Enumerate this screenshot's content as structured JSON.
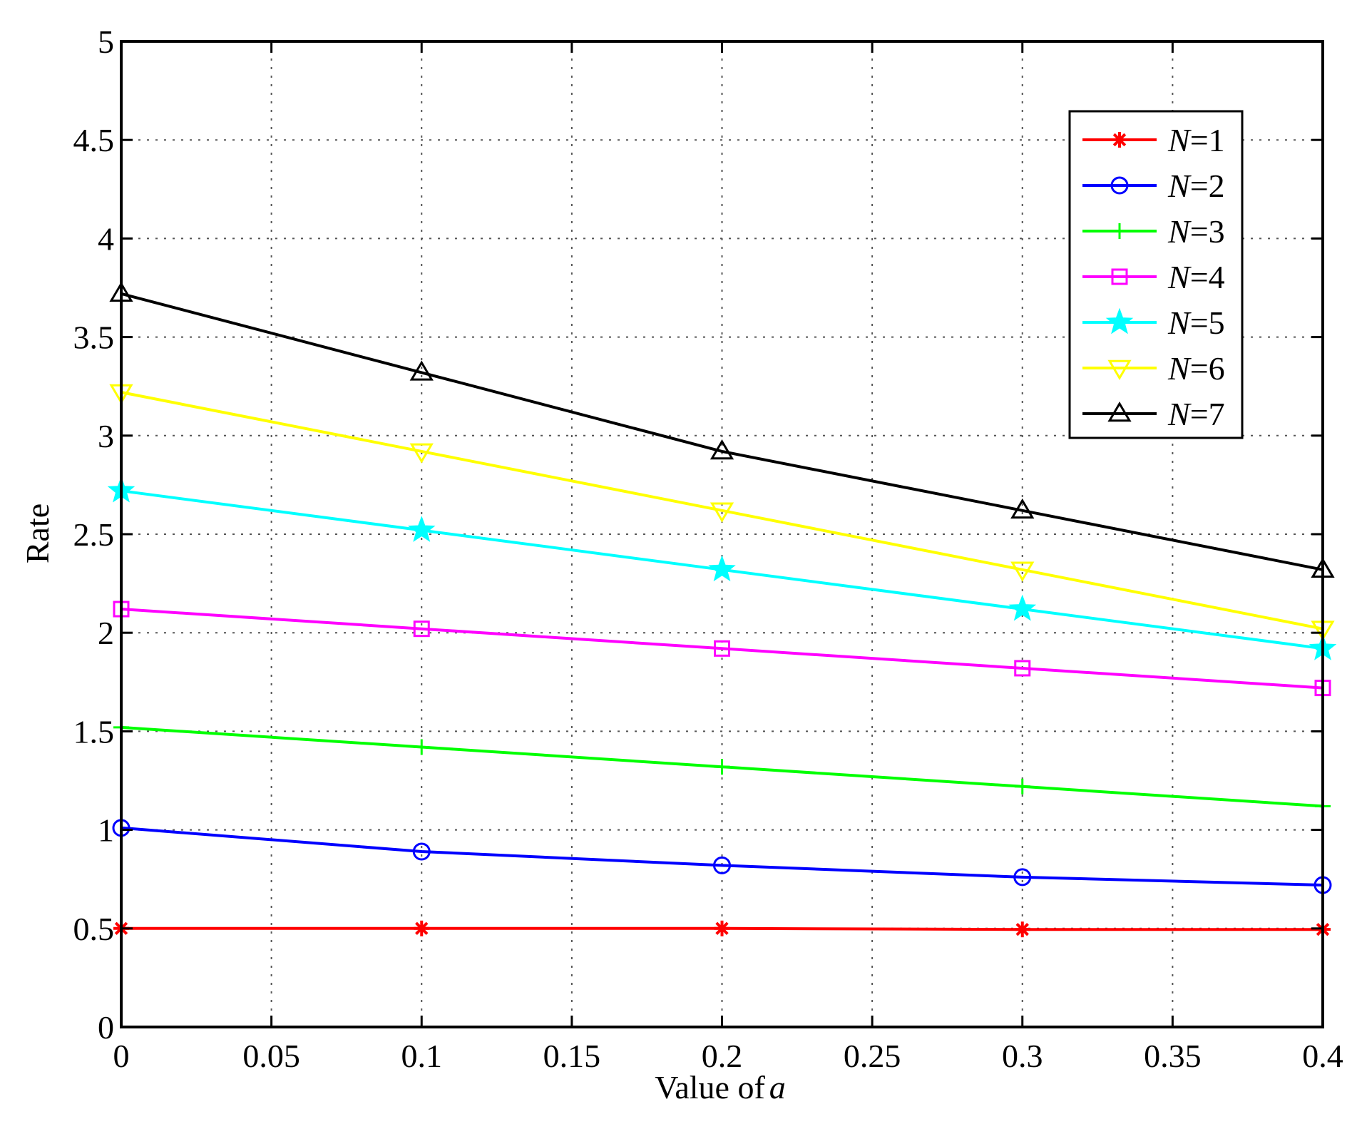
{
  "chart_data": {
    "type": "line",
    "title": "",
    "xlabel": "Value of",
    "xlabel_var": "a",
    "ylabel": "Rate",
    "xlim": [
      0,
      0.4
    ],
    "ylim": [
      0,
      5
    ],
    "grid": true,
    "legend_position": "top-right",
    "x": [
      0,
      0.1,
      0.2,
      0.3,
      0.4
    ],
    "x_ticks": [
      "0",
      "0.05",
      "0.1",
      "0.15",
      "0.2",
      "0.25",
      "0.3",
      "0.35",
      "0.4"
    ],
    "x_tick_values": [
      0,
      0.05,
      0.1,
      0.15,
      0.2,
      0.25,
      0.3,
      0.35,
      0.4
    ],
    "y_ticks": [
      "0",
      "0.5",
      "1",
      "1.5",
      "2",
      "2.5",
      "3",
      "3.5",
      "4",
      "4.5",
      "5"
    ],
    "y_tick_values": [
      0,
      0.5,
      1,
      1.5,
      2,
      2.5,
      3,
      3.5,
      4,
      4.5,
      5
    ],
    "series": [
      {
        "name": "N=1",
        "var": "N",
        "eq": "=1",
        "color": "#ff0000",
        "marker": "asterisk",
        "values": [
          0.5,
          0.5,
          0.5,
          0.495,
          0.495
        ]
      },
      {
        "name": "N=2",
        "var": "N",
        "eq": "=2",
        "color": "#0000ff",
        "marker": "circle",
        "values": [
          1.01,
          0.89,
          0.82,
          0.76,
          0.72
        ]
      },
      {
        "name": "N=3",
        "var": "N",
        "eq": "=3",
        "color": "#00ff00",
        "marker": "plus",
        "values": [
          1.52,
          1.42,
          1.32,
          1.22,
          1.12
        ]
      },
      {
        "name": "N=4",
        "var": "N",
        "eq": "=4",
        "color": "#ff00ff",
        "marker": "square",
        "values": [
          2.12,
          2.02,
          1.92,
          1.82,
          1.72
        ]
      },
      {
        "name": "N=5",
        "var": "N",
        "eq": "=5",
        "color": "#00ffff",
        "marker": "star",
        "values": [
          2.72,
          2.52,
          2.32,
          2.12,
          1.92
        ]
      },
      {
        "name": "N=6",
        "var": "N",
        "eq": "=6",
        "color": "#ffff00",
        "marker": "triangle-down",
        "values": [
          3.22,
          2.92,
          2.62,
          2.32,
          2.02
        ]
      },
      {
        "name": "N=7",
        "var": "N",
        "eq": "=7",
        "color": "#000000",
        "marker": "triangle-up",
        "values": [
          3.72,
          3.32,
          2.92,
          2.62,
          2.32
        ]
      }
    ]
  }
}
